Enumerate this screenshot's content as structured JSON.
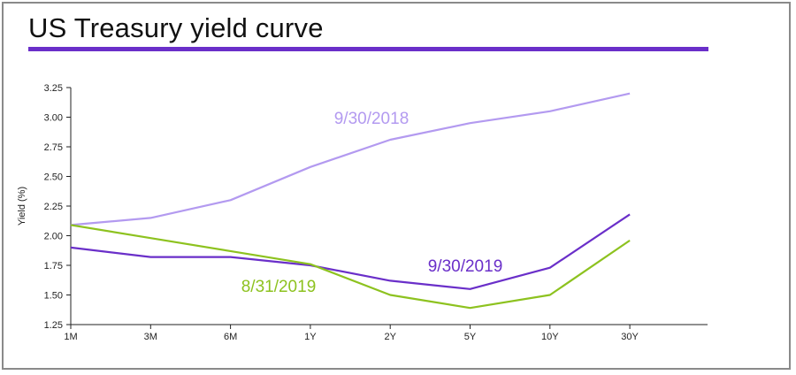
{
  "page": {
    "title": "US Treasury yield curve",
    "accent": "#6a2fc9",
    "border_color": "#8a8a8a"
  },
  "chart_data": {
    "type": "line",
    "title": "US Treasury yield curve",
    "xlabel": "",
    "ylabel": "Yield (%)",
    "categories": [
      "1M",
      "3M",
      "6M",
      "1Y",
      "2Y",
      "5Y",
      "10Y",
      "30Y"
    ],
    "ylim": [
      1.25,
      3.25
    ],
    "yticks": [
      "1.25",
      "1.50",
      "1.75",
      "2.00",
      "2.25",
      "2.50",
      "2.75",
      "3.00",
      "3.25"
    ],
    "grid": false,
    "series": [
      {
        "name": "9/30/2018",
        "color": "#b39af0",
        "values": [
          2.09,
          2.15,
          2.3,
          2.58,
          2.81,
          2.95,
          3.05,
          3.2
        ]
      },
      {
        "name": "9/30/2019",
        "color": "#6a2fc9",
        "values": [
          1.9,
          1.82,
          1.82,
          1.75,
          1.62,
          1.55,
          1.73,
          2.18
        ]
      },
      {
        "name": "8/31/2019",
        "color": "#8dc21f",
        "values": [
          2.09,
          1.98,
          1.87,
          1.76,
          1.5,
          1.39,
          1.5,
          1.96
        ]
      }
    ]
  }
}
